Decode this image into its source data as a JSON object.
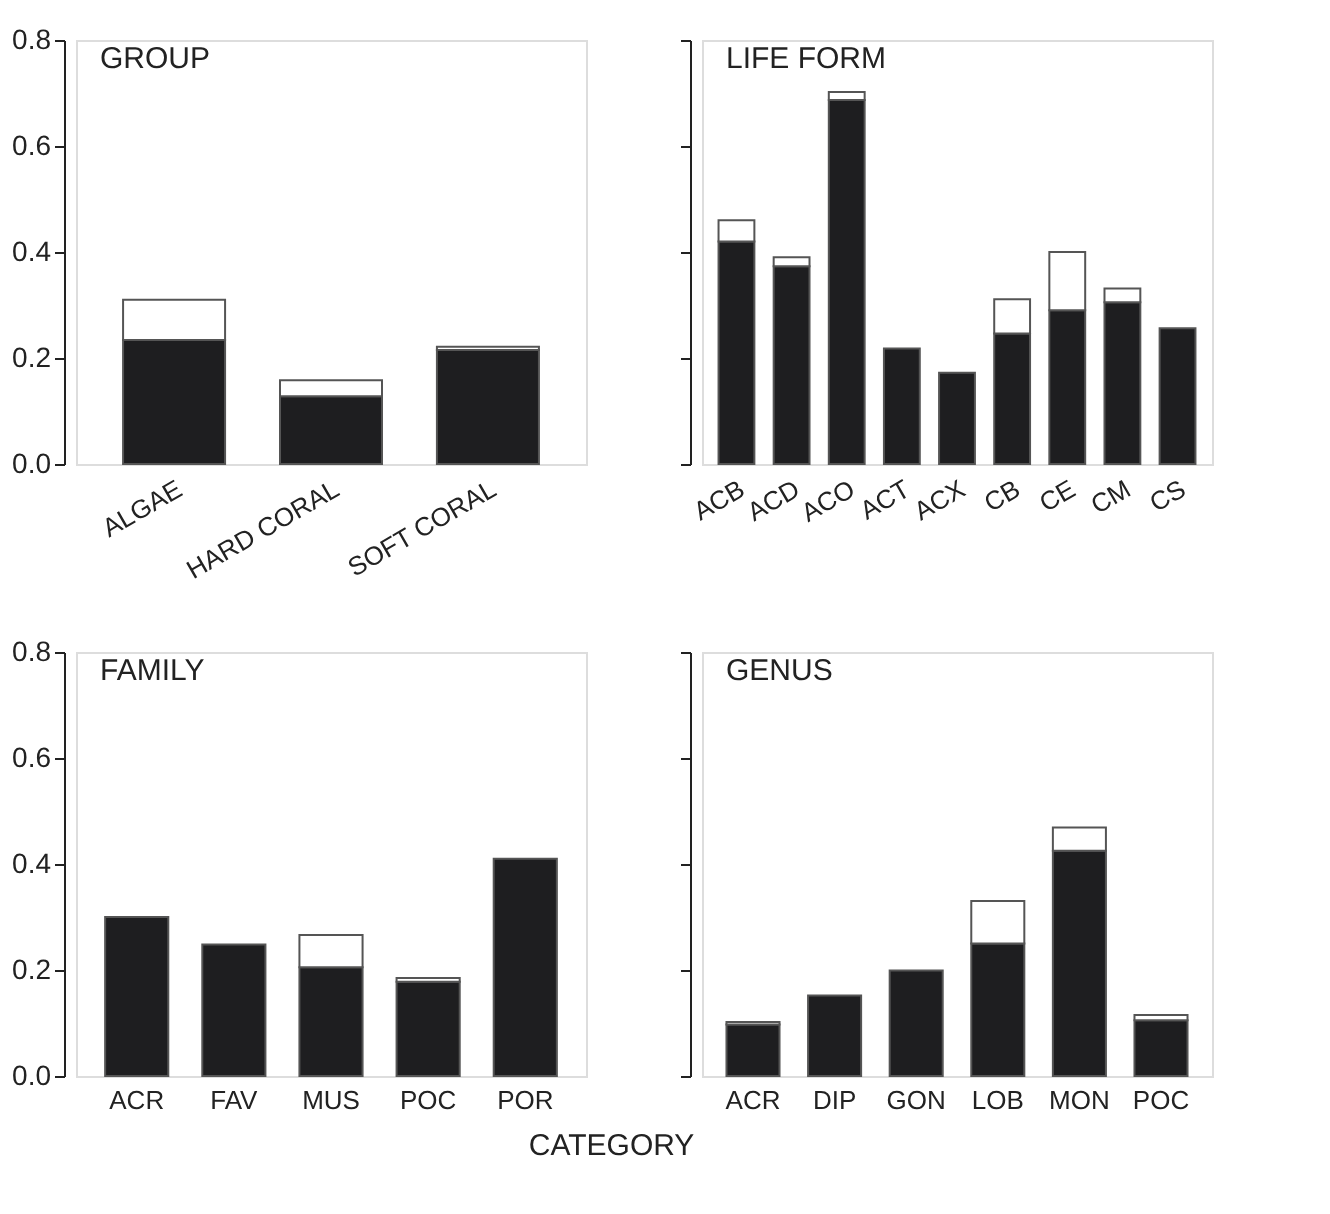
{
  "chart_data": [
    {
      "type": "bar",
      "title": "GROUP",
      "categories": [
        "ALGAE",
        "HARD CORAL",
        "SOFT CORAL"
      ],
      "stacked": true,
      "ylim": [
        0,
        0.8
      ],
      "yticks": [
        {
          "value": 0,
          "label": "0.0"
        },
        {
          "value": 0.2,
          "label": "0.2"
        },
        {
          "value": 0.4,
          "label": "0.4"
        },
        {
          "value": 0.6,
          "label": "0.6"
        },
        {
          "value": 0.8,
          "label": "0.8"
        }
      ],
      "grid": false,
      "legend": false,
      "series": [
        {
          "color": "#1e1e20",
          "values": [
            0.234,
            0.128,
            0.215
          ]
        },
        {
          "color": "#ffffff",
          "values": [
            0.076,
            0.03,
            0.006
          ]
        }
      ]
    },
    {
      "type": "bar",
      "title": "LIFE FORM",
      "categories": [
        "ACB",
        "ACD",
        "ACO",
        "ACT",
        "ACX",
        "CB",
        "CE",
        "CM",
        "CS"
      ],
      "stacked": true,
      "ylim": [
        0,
        0.8
      ],
      "yticks": [
        {
          "value": 0,
          "label": null
        },
        {
          "value": 0.2,
          "label": null
        },
        {
          "value": 0.4,
          "label": null
        },
        {
          "value": 0.6,
          "label": null
        },
        {
          "value": 0.8,
          "label": null
        }
      ],
      "tick_labels": "x",
      "grid": false,
      "legend": false,
      "series": [
        {
          "color": "#1e1e20",
          "values": [
            0.42,
            0.373,
            0.687,
            0.218,
            0.172,
            0.246,
            0.29,
            0.305,
            0.256
          ]
        },
        {
          "color": "#ffffff",
          "values": [
            0.04,
            0.017,
            0.015,
            0,
            0,
            0.065,
            0.11,
            0.026,
            0
          ]
        }
      ]
    },
    {
      "type": "bar",
      "title": "FAMILY",
      "xlabel": "CATEGORY",
      "categories": [
        "ACR",
        "FAV",
        "MUS",
        "POC",
        "POR"
      ],
      "stacked": true,
      "ylim": [
        0,
        0.8
      ],
      "yticks": [
        {
          "value": 0,
          "label": "0.0"
        },
        {
          "value": 0.2,
          "label": "0.2"
        },
        {
          "value": 0.4,
          "label": "0.4"
        },
        {
          "value": 0.6,
          "label": "0.6"
        },
        {
          "value": 0.8,
          "label": "0.8"
        }
      ],
      "grid": false,
      "legend": false,
      "series": [
        {
          "color": "#1e1e20",
          "values": [
            0.3,
            0.248,
            0.205,
            0.178,
            0.41
          ]
        },
        {
          "color": "#ffffff",
          "values": [
            0,
            0,
            0.061,
            0.007,
            0
          ]
        }
      ]
    },
    {
      "type": "bar",
      "title": "GENUS",
      "categories": [
        "ACR",
        "DIP",
        "GON",
        "LOB",
        "MON",
        "POC"
      ],
      "stacked": true,
      "ylim": [
        0,
        0.8
      ],
      "yticks": [
        {
          "value": 0,
          "label": null
        },
        {
          "value": 0.2,
          "label": null
        },
        {
          "value": 0.4,
          "label": null
        },
        {
          "value": 0.6,
          "label": null
        },
        {
          "value": 0.8,
          "label": null
        }
      ],
      "tick_labels": "x",
      "grid": false,
      "legend": false,
      "series": [
        {
          "color": "#1e1e20",
          "values": [
            0.097,
            0.152,
            0.199,
            0.25,
            0.425,
            0.105
          ]
        },
        {
          "color": "#ffffff",
          "values": [
            0.005,
            0,
            0,
            0.08,
            0.044,
            0.01
          ]
        }
      ]
    }
  ]
}
